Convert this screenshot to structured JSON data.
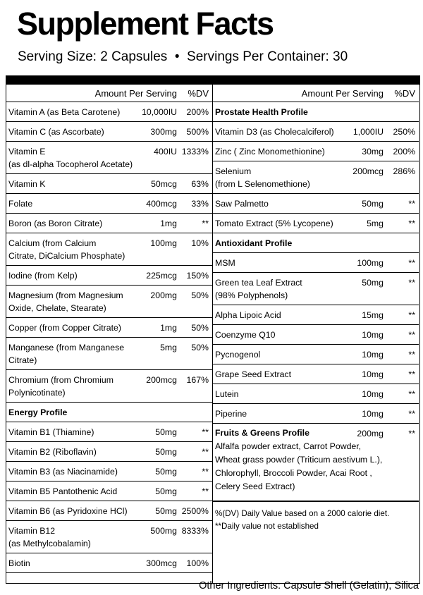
{
  "header": {
    "title": "Supplement Facts",
    "serving": "Serving Size: 2 Capsules  •  Servings Per Container: 30"
  },
  "columns": [
    {
      "header": {
        "amount": "Amount Per Serving",
        "dv": "%DV"
      },
      "rows": [
        {
          "name": [
            "Vitamin A (as Beta Carotene)"
          ],
          "amount": "10,000IU",
          "dv": "200%"
        },
        {
          "name": [
            "Vitamin C (as Ascorbate)"
          ],
          "amount": "300mg",
          "dv": "500%"
        },
        {
          "name": [
            "Vitamin E",
            "(as dl-alpha Tocopherol Acetate)"
          ],
          "amount": "400IU",
          "dv": "1333%"
        },
        {
          "name": [
            "Vitamin K"
          ],
          "amount": "50mcg",
          "dv": "63%"
        },
        {
          "name": [
            "Folate"
          ],
          "amount": "400mcg",
          "dv": "33%"
        },
        {
          "name": [
            "Boron (as Boron Citrate)"
          ],
          "amount": "1mg",
          "dv": "**"
        },
        {
          "name": [
            "Calcium (from Calcium",
            "Citrate, DiCalcium Phosphate)"
          ],
          "amount": "100mg",
          "dv": "10%"
        },
        {
          "name": [
            "Iodine (from Kelp)"
          ],
          "amount": "225mcg",
          "dv": "150%"
        },
        {
          "name": [
            "Magnesium (from Magnesium",
            "Oxide, Chelate, Stearate)"
          ],
          "amount": "200mg",
          "dv": "50%"
        },
        {
          "name": [
            "Copper (from Copper Citrate)"
          ],
          "amount": "1mg",
          "dv": "50%"
        },
        {
          "name": [
            "Manganese (from Manganese",
            "Citrate)"
          ],
          "amount": "5mg",
          "dv": "50%"
        },
        {
          "name": [
            "Chromium (from Chromium",
            "Polynicotinate)"
          ],
          "amount": "200mcg",
          "dv": "167%"
        },
        {
          "section": "Energy Profile"
        },
        {
          "name": [
            "Vitamin B1 (Thiamine)"
          ],
          "amount": "50mg",
          "dv": "**"
        },
        {
          "name": [
            "Vitamin B2 (Riboflavin)"
          ],
          "amount": "50mg",
          "dv": "**"
        },
        {
          "name": [
            "Vitamin B3   (as Niacinamide)"
          ],
          "amount": "50mg",
          "dv": "**"
        },
        {
          "name": [
            "Vitamin B5 Pantothenic Acid"
          ],
          "amount": "50mg",
          "dv": "**"
        },
        {
          "name": [
            "Vitamin B6 (as Pyridoxine HCl)"
          ],
          "amount": "50mg",
          "dv": "2500%"
        },
        {
          "name": [
            "Vitamin B12",
            "(as Methylcobalamin)"
          ],
          "amount": "500mg",
          "dv": "8333%"
        },
        {
          "name": [
            "Biotin"
          ],
          "amount": "300mcg",
          "dv": "100%"
        }
      ]
    },
    {
      "header": {
        "amount": "Amount Per Serving",
        "dv": "%DV"
      },
      "rows": [
        {
          "section": "Prostate Health  Profile"
        },
        {
          "name": [
            "Vitamin D3 (as Cholecalciferol)"
          ],
          "amount": "1,000IU",
          "dv": "250%"
        },
        {
          "name": [
            "Zinc ( Zinc Monomethionine)"
          ],
          "amount": "30mg",
          "dv": "200%"
        },
        {
          "name": [
            "Selenium",
            "(from L Selenomethione)"
          ],
          "amount": "200mcg",
          "dv": "286%"
        },
        {
          "name": [
            "Saw Palmetto"
          ],
          "amount": "50mg",
          "dv": "**"
        },
        {
          "name": [
            "Tomato Extract (5% Lycopene)"
          ],
          "amount": "5mg",
          "dv": "**"
        },
        {
          "section": "Antioxidant Profile"
        },
        {
          "name": [
            "MSM"
          ],
          "amount": "100mg",
          "dv": "**"
        },
        {
          "name": [
            "Green tea Leaf Extract",
            "(98% Polyphenols)"
          ],
          "amount": "50mg",
          "dv": "**"
        },
        {
          "name": [
            "Alpha Lipoic Acid"
          ],
          "amount": "15mg",
          "dv": "**"
        },
        {
          "name": [
            "Coenzyme Q10"
          ],
          "amount": "10mg",
          "dv": "**"
        },
        {
          "name": [
            "Pycnogenol"
          ],
          "amount": "10mg",
          "dv": "**"
        },
        {
          "name": [
            "Grape Seed Extract"
          ],
          "amount": "10mg",
          "dv": "**"
        },
        {
          "name": [
            "Lutein"
          ],
          "amount": "10mg",
          "dv": "**"
        },
        {
          "name": [
            "Piperine"
          ],
          "amount": "10mg",
          "dv": "**"
        }
      ],
      "blend": {
        "name": "Fruits & Greens Profile",
        "amount": "200mg",
        "dv": "**",
        "description": [
          "Alfalfa powder extract, Carrot Powder,",
          "Wheat grass powder (Triticum aestivum L.),",
          "Chlorophyll, Broccoli Powder, Acai Root ,",
          "Celery Seed Extract)"
        ]
      },
      "footnotes": [
        "%(DV) Daily Value based on a 2000 calorie diet.",
        "**Daily value not established"
      ]
    }
  ],
  "footer": "Other Ingredients: Capsule Shell (Gelatin), Silica"
}
